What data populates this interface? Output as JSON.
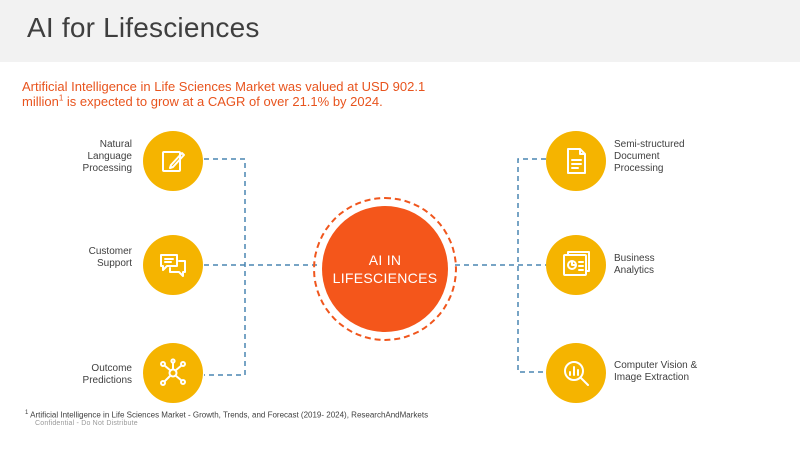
{
  "header": {
    "title": "AI for Lifesciences"
  },
  "intro": {
    "text_a": "Artificial Intelligence in Life Sciences Market was valued at USD 902.1 million",
    "sup": "1",
    "text_b": " is expected to grow at a CAGR of over 21.1%  by 2024."
  },
  "center": {
    "line1": "AI IN",
    "line2": "LIFESCIENCES"
  },
  "left_nodes": [
    {
      "label": "Natural\nLanguage\nProcessing",
      "icon": "pencil-note-icon"
    },
    {
      "label": "Customer\nSupport",
      "icon": "chat-bubbles-icon"
    },
    {
      "label": "Outcome\nPredictions",
      "icon": "network-nodes-icon"
    }
  ],
  "right_nodes": [
    {
      "label": "Semi-structured\nDocument\nProcessing",
      "icon": "document-icon"
    },
    {
      "label": "Business\nAnalytics",
      "icon": "analytics-report-icon"
    },
    {
      "label": "Computer Vision &\nImage Extraction",
      "icon": "magnifier-chart-icon"
    }
  ],
  "footnote": {
    "sup": "1",
    "text": " Artificial Intelligence in Life Sciences Market - Growth, Trends, and Forecast (2019- 2024), ResearchAndMarkets"
  },
  "confidential": "Confidential - Do Not Distribute",
  "colors": {
    "accent": "#f4561b",
    "node": "#f5b400",
    "connector": "#4a86b2"
  }
}
